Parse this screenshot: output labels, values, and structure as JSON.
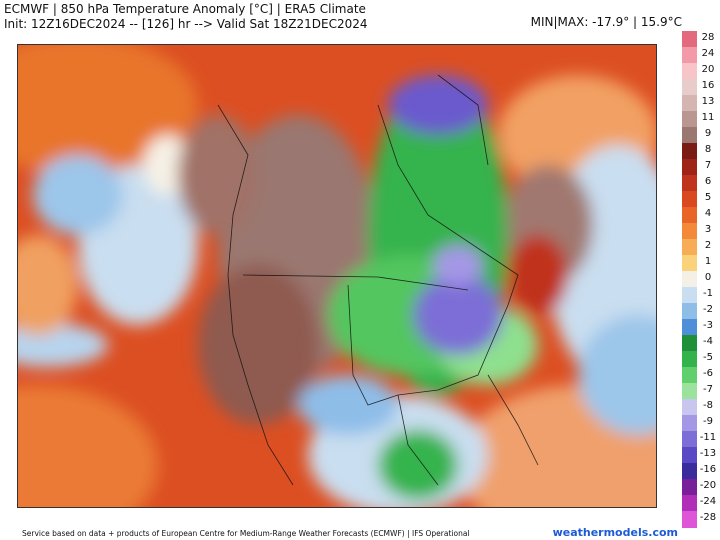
{
  "header": {
    "title_line1": "ECMWF | 850 hPa Temperature Anomaly [°C] | ERA5 Climate",
    "title_line2": "Init: 12Z16DEC2024 -- [126] hr --> Valid Sat 18Z21DEC2024",
    "minmax": "MIN|MAX: -17.9° | 15.9°C"
  },
  "colorbar": {
    "labels": [
      "28",
      "24",
      "20",
      "16",
      "13",
      "11",
      "9",
      "8",
      "7",
      "6",
      "5",
      "4",
      "3",
      "2",
      "1",
      "0",
      "-1",
      "-2",
      "-3",
      "-4",
      "-5",
      "-6",
      "-7",
      "-8",
      "-9",
      "-11",
      "-13",
      "-16",
      "-20",
      "-24",
      "-28"
    ],
    "colors": [
      "#e36a7e",
      "#f29aa7",
      "#f7c4c8",
      "#e8cccc",
      "#d4b5b2",
      "#b99690",
      "#9a7770",
      "#7a1b16",
      "#9e2418",
      "#c0331c",
      "#d9481f",
      "#e86427",
      "#f28a3a",
      "#f7ad55",
      "#fbd27c",
      "#f5f0e6",
      "#c9def0",
      "#8ebde8",
      "#4f8ed8",
      "#1f8f3a",
      "#34b34d",
      "#61cf6d",
      "#9be39c",
      "#c8c5ef",
      "#a497e6",
      "#7c6ed6",
      "#5a49c4",
      "#3a2c9c",
      "#7a1f9a",
      "#b02eb8",
      "#de55d8"
    ]
  },
  "map": {
    "alt": "850 hPa temperature anomaly map over North America",
    "region": "North America"
  },
  "footer": {
    "text": "Service based on data + products of European Centre for Medium-Range Weather Forecasts (ECMWF) | IFS Operational",
    "brand": "weathermodels.com"
  }
}
